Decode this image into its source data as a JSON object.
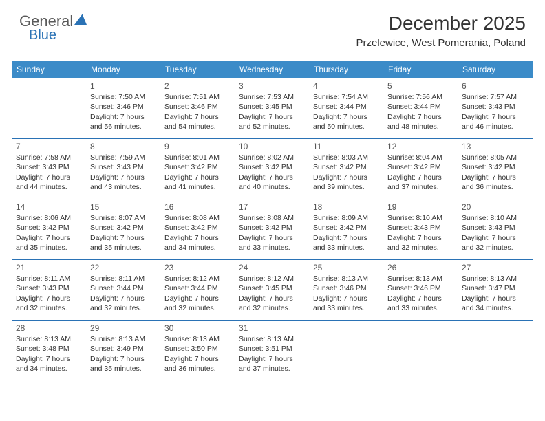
{
  "branding": {
    "logo_word1": "General",
    "logo_word2": "Blue",
    "logo_color_gray": "#5a5a5a",
    "logo_color_blue": "#2a72b5"
  },
  "header": {
    "title": "December 2025",
    "location": "Przelewice, West Pomerania, Poland"
  },
  "style": {
    "header_bg": "#3b8bc8",
    "row_divider": "#2a72b5",
    "text_color": "#333333",
    "daynum_color": "#555555",
    "background": "#ffffff",
    "title_fontsize": 28,
    "location_fontsize": 15,
    "dayhead_fontsize": 12,
    "cell_fontsize": 10.5
  },
  "day_labels": [
    "Sunday",
    "Monday",
    "Tuesday",
    "Wednesday",
    "Thursday",
    "Friday",
    "Saturday"
  ],
  "weeks": [
    [
      null,
      {
        "n": "1",
        "sr": "Sunrise: 7:50 AM",
        "ss": "Sunset: 3:46 PM",
        "d1": "Daylight: 7 hours",
        "d2": "and 56 minutes."
      },
      {
        "n": "2",
        "sr": "Sunrise: 7:51 AM",
        "ss": "Sunset: 3:46 PM",
        "d1": "Daylight: 7 hours",
        "d2": "and 54 minutes."
      },
      {
        "n": "3",
        "sr": "Sunrise: 7:53 AM",
        "ss": "Sunset: 3:45 PM",
        "d1": "Daylight: 7 hours",
        "d2": "and 52 minutes."
      },
      {
        "n": "4",
        "sr": "Sunrise: 7:54 AM",
        "ss": "Sunset: 3:44 PM",
        "d1": "Daylight: 7 hours",
        "d2": "and 50 minutes."
      },
      {
        "n": "5",
        "sr": "Sunrise: 7:56 AM",
        "ss": "Sunset: 3:44 PM",
        "d1": "Daylight: 7 hours",
        "d2": "and 48 minutes."
      },
      {
        "n": "6",
        "sr": "Sunrise: 7:57 AM",
        "ss": "Sunset: 3:43 PM",
        "d1": "Daylight: 7 hours",
        "d2": "and 46 minutes."
      }
    ],
    [
      {
        "n": "7",
        "sr": "Sunrise: 7:58 AM",
        "ss": "Sunset: 3:43 PM",
        "d1": "Daylight: 7 hours",
        "d2": "and 44 minutes."
      },
      {
        "n": "8",
        "sr": "Sunrise: 7:59 AM",
        "ss": "Sunset: 3:43 PM",
        "d1": "Daylight: 7 hours",
        "d2": "and 43 minutes."
      },
      {
        "n": "9",
        "sr": "Sunrise: 8:01 AM",
        "ss": "Sunset: 3:42 PM",
        "d1": "Daylight: 7 hours",
        "d2": "and 41 minutes."
      },
      {
        "n": "10",
        "sr": "Sunrise: 8:02 AM",
        "ss": "Sunset: 3:42 PM",
        "d1": "Daylight: 7 hours",
        "d2": "and 40 minutes."
      },
      {
        "n": "11",
        "sr": "Sunrise: 8:03 AM",
        "ss": "Sunset: 3:42 PM",
        "d1": "Daylight: 7 hours",
        "d2": "and 39 minutes."
      },
      {
        "n": "12",
        "sr": "Sunrise: 8:04 AM",
        "ss": "Sunset: 3:42 PM",
        "d1": "Daylight: 7 hours",
        "d2": "and 37 minutes."
      },
      {
        "n": "13",
        "sr": "Sunrise: 8:05 AM",
        "ss": "Sunset: 3:42 PM",
        "d1": "Daylight: 7 hours",
        "d2": "and 36 minutes."
      }
    ],
    [
      {
        "n": "14",
        "sr": "Sunrise: 8:06 AM",
        "ss": "Sunset: 3:42 PM",
        "d1": "Daylight: 7 hours",
        "d2": "and 35 minutes."
      },
      {
        "n": "15",
        "sr": "Sunrise: 8:07 AM",
        "ss": "Sunset: 3:42 PM",
        "d1": "Daylight: 7 hours",
        "d2": "and 35 minutes."
      },
      {
        "n": "16",
        "sr": "Sunrise: 8:08 AM",
        "ss": "Sunset: 3:42 PM",
        "d1": "Daylight: 7 hours",
        "d2": "and 34 minutes."
      },
      {
        "n": "17",
        "sr": "Sunrise: 8:08 AM",
        "ss": "Sunset: 3:42 PM",
        "d1": "Daylight: 7 hours",
        "d2": "and 33 minutes."
      },
      {
        "n": "18",
        "sr": "Sunrise: 8:09 AM",
        "ss": "Sunset: 3:42 PM",
        "d1": "Daylight: 7 hours",
        "d2": "and 33 minutes."
      },
      {
        "n": "19",
        "sr": "Sunrise: 8:10 AM",
        "ss": "Sunset: 3:43 PM",
        "d1": "Daylight: 7 hours",
        "d2": "and 32 minutes."
      },
      {
        "n": "20",
        "sr": "Sunrise: 8:10 AM",
        "ss": "Sunset: 3:43 PM",
        "d1": "Daylight: 7 hours",
        "d2": "and 32 minutes."
      }
    ],
    [
      {
        "n": "21",
        "sr": "Sunrise: 8:11 AM",
        "ss": "Sunset: 3:43 PM",
        "d1": "Daylight: 7 hours",
        "d2": "and 32 minutes."
      },
      {
        "n": "22",
        "sr": "Sunrise: 8:11 AM",
        "ss": "Sunset: 3:44 PM",
        "d1": "Daylight: 7 hours",
        "d2": "and 32 minutes."
      },
      {
        "n": "23",
        "sr": "Sunrise: 8:12 AM",
        "ss": "Sunset: 3:44 PM",
        "d1": "Daylight: 7 hours",
        "d2": "and 32 minutes."
      },
      {
        "n": "24",
        "sr": "Sunrise: 8:12 AM",
        "ss": "Sunset: 3:45 PM",
        "d1": "Daylight: 7 hours",
        "d2": "and 32 minutes."
      },
      {
        "n": "25",
        "sr": "Sunrise: 8:13 AM",
        "ss": "Sunset: 3:46 PM",
        "d1": "Daylight: 7 hours",
        "d2": "and 33 minutes."
      },
      {
        "n": "26",
        "sr": "Sunrise: 8:13 AM",
        "ss": "Sunset: 3:46 PM",
        "d1": "Daylight: 7 hours",
        "d2": "and 33 minutes."
      },
      {
        "n": "27",
        "sr": "Sunrise: 8:13 AM",
        "ss": "Sunset: 3:47 PM",
        "d1": "Daylight: 7 hours",
        "d2": "and 34 minutes."
      }
    ],
    [
      {
        "n": "28",
        "sr": "Sunrise: 8:13 AM",
        "ss": "Sunset: 3:48 PM",
        "d1": "Daylight: 7 hours",
        "d2": "and 34 minutes."
      },
      {
        "n": "29",
        "sr": "Sunrise: 8:13 AM",
        "ss": "Sunset: 3:49 PM",
        "d1": "Daylight: 7 hours",
        "d2": "and 35 minutes."
      },
      {
        "n": "30",
        "sr": "Sunrise: 8:13 AM",
        "ss": "Sunset: 3:50 PM",
        "d1": "Daylight: 7 hours",
        "d2": "and 36 minutes."
      },
      {
        "n": "31",
        "sr": "Sunrise: 8:13 AM",
        "ss": "Sunset: 3:51 PM",
        "d1": "Daylight: 7 hours",
        "d2": "and 37 minutes."
      },
      null,
      null,
      null
    ]
  ]
}
